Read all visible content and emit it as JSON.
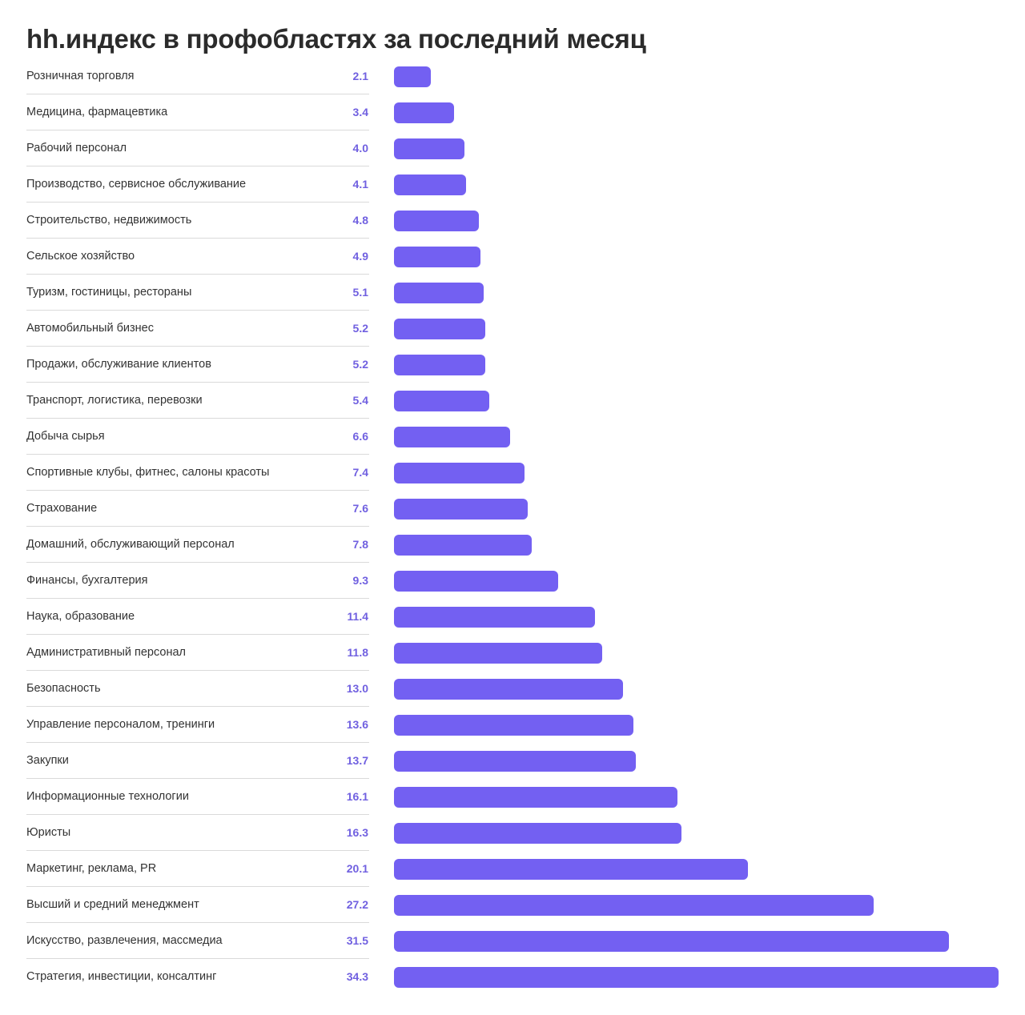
{
  "title": "hh.индекс в профобластях за последний месяц",
  "colors": {
    "bar": "#7360f2",
    "value_text": "#7060e0",
    "label_text": "#333333",
    "divider": "#dadada"
  },
  "chart_data": {
    "type": "bar",
    "orientation": "horizontal",
    "title": "hh.индекс в профобластях за последний месяц",
    "xlabel": "",
    "ylabel": "",
    "grid": false,
    "legend": null,
    "xlim": [
      0,
      34.3
    ],
    "categories": [
      "Розничная торговля",
      "Медицина, фармацевтика",
      "Рабочий персонал",
      "Производство, сервисное обслуживание",
      "Строительство, недвижимость",
      "Сельское хозяйство",
      "Туризм, гостиницы, рестораны",
      "Автомобильный бизнес",
      "Продажи, обслуживание клиентов",
      "Транспорт, логистика, перевозки",
      "Добыча сырья",
      "Спортивные клубы, фитнес, салоны красоты",
      "Страхование",
      "Домашний, обслуживающий персонал",
      "Финансы, бухгалтерия",
      "Наука, образование",
      "Административный персонал",
      "Безопасность",
      "Управление персоналом, тренинги",
      "Закупки",
      "Информационные технологии",
      "Юристы",
      "Маркетинг, реклама, PR",
      "Высший и средний менеджмент",
      "Искусство, развлечения, массмедиа",
      "Стратегия, инвестиции, консалтинг"
    ],
    "values": [
      2.1,
      3.4,
      4.0,
      4.1,
      4.8,
      4.9,
      5.1,
      5.2,
      5.2,
      5.4,
      6.6,
      7.4,
      7.6,
      7.8,
      9.3,
      11.4,
      11.8,
      13.0,
      13.6,
      13.7,
      16.1,
      16.3,
      20.1,
      27.2,
      31.5,
      34.3
    ],
    "value_labels": [
      "2.1",
      "3.4",
      "4.0",
      "4.1",
      "4.8",
      "4.9",
      "5.1",
      "5.2",
      "5.2",
      "5.4",
      "6.6",
      "7.4",
      "7.6",
      "7.8",
      "9.3",
      "11.4",
      "11.8",
      "13.0",
      "13.6",
      "13.7",
      "16.1",
      "16.3",
      "20.1",
      "27.2",
      "31.5",
      "34.3"
    ]
  }
}
